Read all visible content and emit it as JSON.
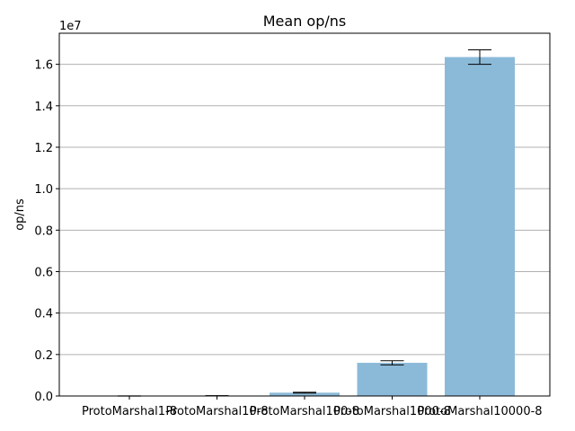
{
  "chart_data": {
    "type": "bar",
    "title": "Mean op/ns",
    "xlabel": "",
    "ylabel": "op/ns",
    "offset_text": "1e7",
    "categories": [
      "ProtoMarshal1-8",
      "ProtoMarshal10-8",
      "ProtoMarshal100-8",
      "ProtoMarshal1000-8",
      "ProtoMarshal10000-8"
    ],
    "values": [
      1000,
      12000,
      160000,
      1600000,
      16350000
    ],
    "errors": [
      5000,
      5000,
      20000,
      100000,
      350000
    ],
    "ylim": [
      0,
      17500000
    ],
    "yticks": [
      0,
      2000000,
      4000000,
      6000000,
      8000000,
      10000000,
      12000000,
      14000000,
      16000000
    ],
    "ytick_labels": [
      "0.0",
      "0.2",
      "0.4",
      "0.6",
      "0.8",
      "1.0",
      "1.2",
      "1.4",
      "1.6"
    ],
    "grid": "y",
    "bar_color": "#8bbad9",
    "grid_color": "#b0b0b0"
  }
}
